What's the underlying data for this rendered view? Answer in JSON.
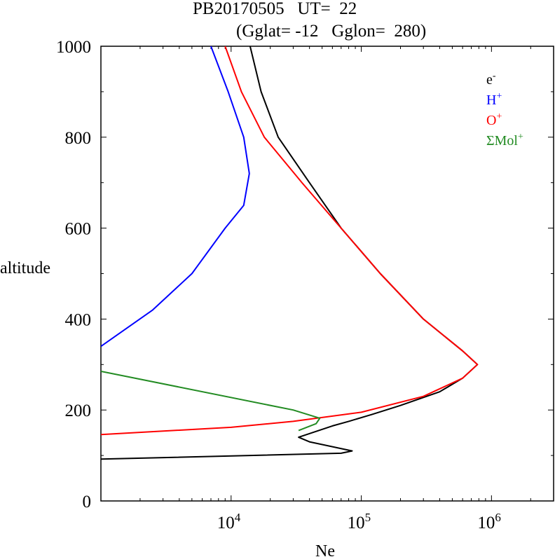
{
  "chart_data": {
    "type": "line",
    "title_line1": "PB20170505   UT=  22",
    "title_line2": "(Gglat= -12   Gglon=  280)",
    "xlabel": "Ne",
    "ylabel": "altitude",
    "xscale": "log",
    "xlim": [
      1000,
      3000000
    ],
    "ylim": [
      0,
      1000
    ],
    "y_ticks": [
      "0",
      "200",
      "400",
      "600",
      "800",
      "1000"
    ],
    "x_ticks": [
      {
        "base": "10",
        "exp": "4",
        "value": 10000
      },
      {
        "base": "10",
        "exp": "5",
        "value": 100000
      },
      {
        "base": "10",
        "exp": "6",
        "value": 1000000
      }
    ],
    "legend_position": "top-right",
    "series": [
      {
        "name": "e",
        "sup": "-",
        "color": "#000000",
        "points": [
          [
            14000,
            1000
          ],
          [
            17000,
            900
          ],
          [
            23000,
            800
          ],
          [
            40000,
            700
          ],
          [
            70000,
            600
          ],
          [
            140000,
            500
          ],
          [
            300000,
            400
          ],
          [
            600000,
            330
          ],
          [
            780000,
            300
          ],
          [
            600000,
            270
          ],
          [
            400000,
            240
          ],
          [
            200000,
            210
          ],
          [
            120000,
            190
          ],
          [
            80000,
            175
          ],
          [
            60000,
            165
          ],
          [
            33000,
            140
          ],
          [
            40000,
            130
          ],
          [
            85000,
            110
          ],
          [
            70000,
            105
          ],
          [
            1000,
            92
          ]
        ]
      },
      {
        "name": "H",
        "sup": "+",
        "color": "#0000ff",
        "points": [
          [
            7000,
            1000
          ],
          [
            9500,
            900
          ],
          [
            12500,
            800
          ],
          [
            13800,
            720
          ],
          [
            12500,
            650
          ],
          [
            9000,
            600
          ],
          [
            5000,
            500
          ],
          [
            2500,
            420
          ],
          [
            1000,
            340
          ]
        ]
      },
      {
        "name": "O",
        "sup": "+",
        "color": "#ff0000",
        "points": [
          [
            9000,
            1000
          ],
          [
            12000,
            900
          ],
          [
            18000,
            800
          ],
          [
            35000,
            700
          ],
          [
            70000,
            600
          ],
          [
            140000,
            500
          ],
          [
            300000,
            400
          ],
          [
            600000,
            330
          ],
          [
            780000,
            300
          ],
          [
            600000,
            270
          ],
          [
            300000,
            230
          ],
          [
            100000,
            195
          ],
          [
            30000,
            175
          ],
          [
            10000,
            162
          ],
          [
            1000,
            146
          ]
        ]
      },
      {
        "name": "ΣMol",
        "sup": "+",
        "color": "#228b22",
        "points": [
          [
            1000,
            285
          ],
          [
            30000,
            200
          ],
          [
            48000,
            182
          ],
          [
            45000,
            170
          ],
          [
            33000,
            155
          ]
        ]
      }
    ]
  }
}
